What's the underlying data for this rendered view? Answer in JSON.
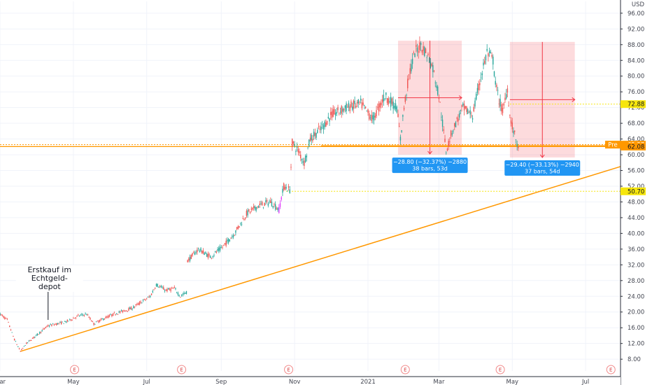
{
  "chart_data": {
    "type": "candlestick",
    "currency": "USD",
    "y_axis": {
      "ticks": [
        8,
        12,
        16,
        20,
        24,
        28,
        32,
        36,
        40,
        44,
        48,
        52,
        56,
        60,
        64,
        68,
        72,
        76,
        80,
        84,
        88,
        92,
        96
      ],
      "tick_labels": [
        "8.00",
        "12.00",
        "16.00",
        "20.00",
        "24.00",
        "28.00",
        "32.00",
        "36.00",
        "40.00",
        "44.00",
        "48.00",
        "52.00",
        "56.00",
        "60.00",
        "64.00",
        "68.00",
        "72.00",
        "76.00",
        "80.00",
        "84.00",
        "88.00",
        "92.00",
        "96.00"
      ],
      "range": [
        5,
        99
      ]
    },
    "x_axis": {
      "labels": [
        {
          "t": 0,
          "label": "Mar"
        },
        {
          "t": 61,
          "label": "May"
        },
        {
          "t": 122,
          "label": "Jul"
        },
        {
          "t": 184,
          "label": "Sep"
        },
        {
          "t": 245,
          "label": "Nov"
        },
        {
          "t": 306,
          "label": "2021"
        },
        {
          "t": 365,
          "label": "Mar"
        },
        {
          "t": 426,
          "label": "May"
        },
        {
          "t": 487,
          "label": "Jul"
        }
      ],
      "range": [
        0,
        516
      ]
    },
    "price_path": [
      [
        0,
        19.5
      ],
      [
        6,
        18
      ],
      [
        12,
        13
      ],
      [
        17,
        10
      ],
      [
        22,
        12
      ],
      [
        30,
        14
      ],
      [
        40,
        16.5
      ],
      [
        55,
        17.5
      ],
      [
        65,
        19
      ],
      [
        72,
        19.5
      ],
      [
        78,
        17
      ],
      [
        84,
        18
      ],
      [
        95,
        19.5
      ],
      [
        110,
        21
      ],
      [
        125,
        24
      ],
      [
        130,
        27
      ],
      [
        138,
        25.5
      ],
      [
        145,
        26
      ],
      [
        150,
        24
      ],
      [
        155,
        25
      ],
      [
        156,
        33
      ],
      [
        165,
        36
      ],
      [
        175,
        34
      ],
      [
        185,
        36.5
      ],
      [
        195,
        40
      ],
      [
        205,
        45
      ],
      [
        215,
        47
      ],
      [
        225,
        48
      ],
      [
        232,
        46
      ],
      [
        236,
        52
      ],
      [
        241,
        51
      ],
      [
        243,
        63
      ],
      [
        248,
        61
      ],
      [
        253,
        58
      ],
      [
        258,
        64
      ],
      [
        268,
        67
      ],
      [
        275,
        70
      ],
      [
        288,
        72
      ],
      [
        300,
        73
      ],
      [
        310,
        69
      ],
      [
        320,
        75
      ],
      [
        330,
        72
      ],
      [
        333,
        64
      ],
      [
        336,
        72
      ],
      [
        340,
        80
      ],
      [
        345,
        86
      ],
      [
        350,
        88
      ],
      [
        356,
        85
      ],
      [
        360,
        82
      ],
      [
        365,
        75
      ],
      [
        368,
        68
      ],
      [
        371,
        61
      ],
      [
        376,
        66
      ],
      [
        385,
        72
      ],
      [
        393,
        70
      ],
      [
        400,
        80
      ],
      [
        405,
        86
      ],
      [
        410,
        84
      ],
      [
        412,
        78
      ],
      [
        415,
        74
      ],
      [
        418,
        71
      ],
      [
        420,
        74
      ],
      [
        422,
        77
      ],
      [
        424,
        70
      ],
      [
        427,
        66
      ],
      [
        430,
        63
      ],
      [
        431,
        61
      ]
    ],
    "candle_seed": 7,
    "magenta_candles": [
      232,
      234
    ],
    "up_color": "#26a69a",
    "down_color": "#ef5350",
    "horizontal_levels": [
      {
        "price": 62.57,
        "label": "62.57",
        "color": "#ff9800",
        "style": "dotted",
        "badge_prefix": "Pre"
      },
      {
        "price": 62.3,
        "label": "62.30",
        "color": "#ff9800",
        "style": "solid"
      },
      {
        "price": 62.08,
        "label": "62.08",
        "color": "#ff9800",
        "style": "solid",
        "badge": true
      },
      {
        "price": 72.88,
        "label": "72.88",
        "color": "#f6e60c",
        "style": "dotted",
        "badge": true
      },
      {
        "price": 50.7,
        "label": "50.70",
        "color": "#f6e60c",
        "style": "dotted",
        "badge": true
      }
    ],
    "trendline": {
      "from": [
        17,
        10
      ],
      "to": [
        516,
        57
      ],
      "color": "#ff9800"
    },
    "measure_boxes": [
      {
        "t0": 331,
        "t1": 384,
        "p_top": 89,
        "p_bottom": 60,
        "p_from": 89.0,
        "p_to": 60.2,
        "line1": "−28.80 (−32.37%) −2880",
        "line2": "38 bars, 53d"
      },
      {
        "t0": 424,
        "t1": 478,
        "p_top": 88.7,
        "p_bottom": 59.3,
        "p_from": 88.7,
        "p_to": 59.3,
        "line1": "−29.40 (−33.13%) −2940",
        "line2": "37 bars, 54d"
      }
    ],
    "earnings_markers": [
      62,
      151,
      240,
      337,
      416,
      508
    ],
    "earnings_label": "E",
    "annotation": {
      "t": 40,
      "p": 18,
      "lines": [
        "Erstkauf im",
        "Echtgeld-",
        "depot"
      ]
    }
  }
}
